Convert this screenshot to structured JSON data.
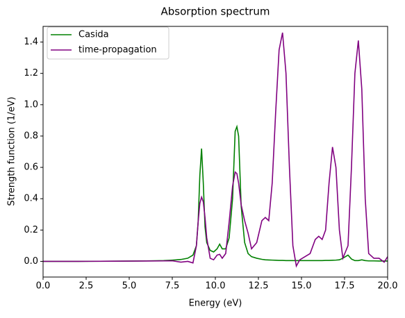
{
  "chart_data": {
    "type": "line",
    "title": "Absorption spectrum",
    "x_label": "Energy (eV)",
    "y_label": "Strength function (1/eV)",
    "x": [
      0,
      2,
      4,
      6,
      7,
      7.5,
      8,
      8.4,
      8.7,
      8.9,
      9.0,
      9.1,
      9.2,
      9.3,
      9.4,
      9.5,
      9.7,
      9.9,
      10.1,
      10.25,
      10.4,
      10.6,
      10.8,
      11.0,
      11.15,
      11.25,
      11.35,
      11.5,
      11.7,
      11.9,
      12.1,
      12.4,
      12.7,
      12.9,
      13.1,
      13.3,
      13.5,
      13.7,
      13.9,
      14.1,
      14.3,
      14.5,
      14.7,
      14.9,
      15.2,
      15.5,
      15.8,
      16.0,
      16.2,
      16.4,
      16.6,
      16.8,
      17.0,
      17.2,
      17.4,
      17.7,
      17.9,
      18.1,
      18.3,
      18.5,
      18.7,
      18.9,
      19.2,
      19.5,
      19.8,
      20.0
    ],
    "series": [
      {
        "name": "Casida",
        "color": "#008000",
        "values": [
          0,
          0,
          0.001,
          0.003,
          0.005,
          0.008,
          0.012,
          0.02,
          0.04,
          0.1,
          0.25,
          0.55,
          0.72,
          0.5,
          0.22,
          0.12,
          0.07,
          0.06,
          0.08,
          0.11,
          0.08,
          0.08,
          0.15,
          0.4,
          0.83,
          0.86,
          0.8,
          0.35,
          0.12,
          0.05,
          0.03,
          0.02,
          0.013,
          0.01,
          0.009,
          0.008,
          0.007,
          0.006,
          0.006,
          0.005,
          0.005,
          0.005,
          0.005,
          0.005,
          0.005,
          0.005,
          0.005,
          0.005,
          0.005,
          0.006,
          0.006,
          0.007,
          0.008,
          0.01,
          0.02,
          0.04,
          0.015,
          0.005,
          0.005,
          0.01,
          0.005,
          0.003,
          0.003,
          0.002,
          0.002,
          0.002
        ]
      },
      {
        "name": "time-propagation",
        "color": "#800080",
        "values": [
          0,
          0,
          0.001,
          0.002,
          0.003,
          0.004,
          -0.005,
          0.0,
          -0.01,
          0.1,
          0.25,
          0.37,
          0.41,
          0.38,
          0.28,
          0.15,
          0.02,
          0.01,
          0.04,
          0.045,
          0.02,
          0.05,
          0.25,
          0.48,
          0.57,
          0.56,
          0.5,
          0.36,
          0.26,
          0.18,
          0.08,
          0.12,
          0.26,
          0.28,
          0.26,
          0.5,
          0.95,
          1.35,
          1.46,
          1.2,
          0.6,
          0.1,
          -0.03,
          0.01,
          0.03,
          0.05,
          0.14,
          0.16,
          0.14,
          0.2,
          0.5,
          0.73,
          0.6,
          0.2,
          0.02,
          0.1,
          0.6,
          1.2,
          1.41,
          1.1,
          0.4,
          0.05,
          0.02,
          0.02,
          -0.005,
          0.03
        ]
      }
    ],
    "xlim": [
      0,
      20
    ],
    "ylim": [
      -0.1,
      1.5
    ],
    "xticks": [
      {
        "value": 0,
        "label": "0.0"
      },
      2.5,
      {
        "value": 5,
        "label": "5.0"
      },
      7.5,
      {
        "value": 10,
        "label": "10.0"
      },
      12.5,
      {
        "value": 15,
        "label": "15.0"
      },
      17.5,
      {
        "value": 20,
        "label": "20.0"
      }
    ],
    "yticks": [
      {
        "value": 0,
        "label": "0.0"
      },
      0.2,
      0.4,
      0.6,
      0.8,
      {
        "value": 1,
        "label": "1.0"
      },
      1.2,
      1.4
    ],
    "legend": "upper-left"
  }
}
